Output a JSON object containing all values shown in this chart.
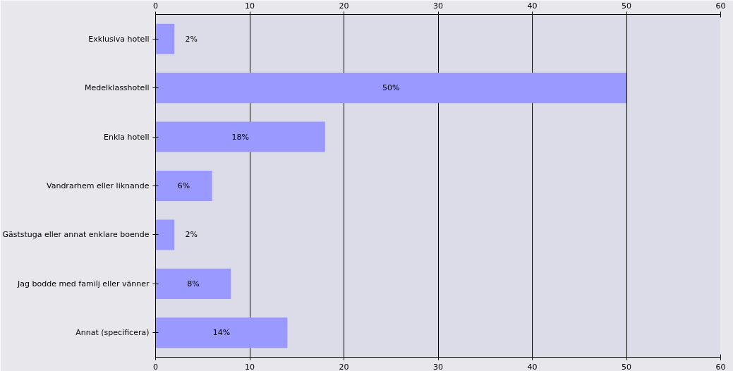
{
  "chart_data": {
    "type": "bar",
    "orientation": "horizontal",
    "categories": [
      "Exklusiva hotell",
      "Medelklasshotell",
      "Enkla hotell",
      "Vandrarhem eller liknande",
      "Gäststuga eller annat enklare boende",
      "Jag bodde med familj eller vänner",
      "Annat (specificera)"
    ],
    "values": [
      2,
      50,
      18,
      6,
      2,
      8,
      14
    ],
    "value_labels": [
      "2%",
      "50%",
      "18%",
      "6%",
      "2%",
      "8%",
      "14%"
    ],
    "color": "#9999ff",
    "xlim": [
      0,
      60
    ],
    "xticks": [
      0,
      10,
      20,
      30,
      40,
      50,
      60
    ],
    "x2lim": [
      0,
      60
    ],
    "x2ticks": [
      0,
      10,
      20,
      30,
      40,
      50,
      60
    ],
    "grid": "x"
  }
}
